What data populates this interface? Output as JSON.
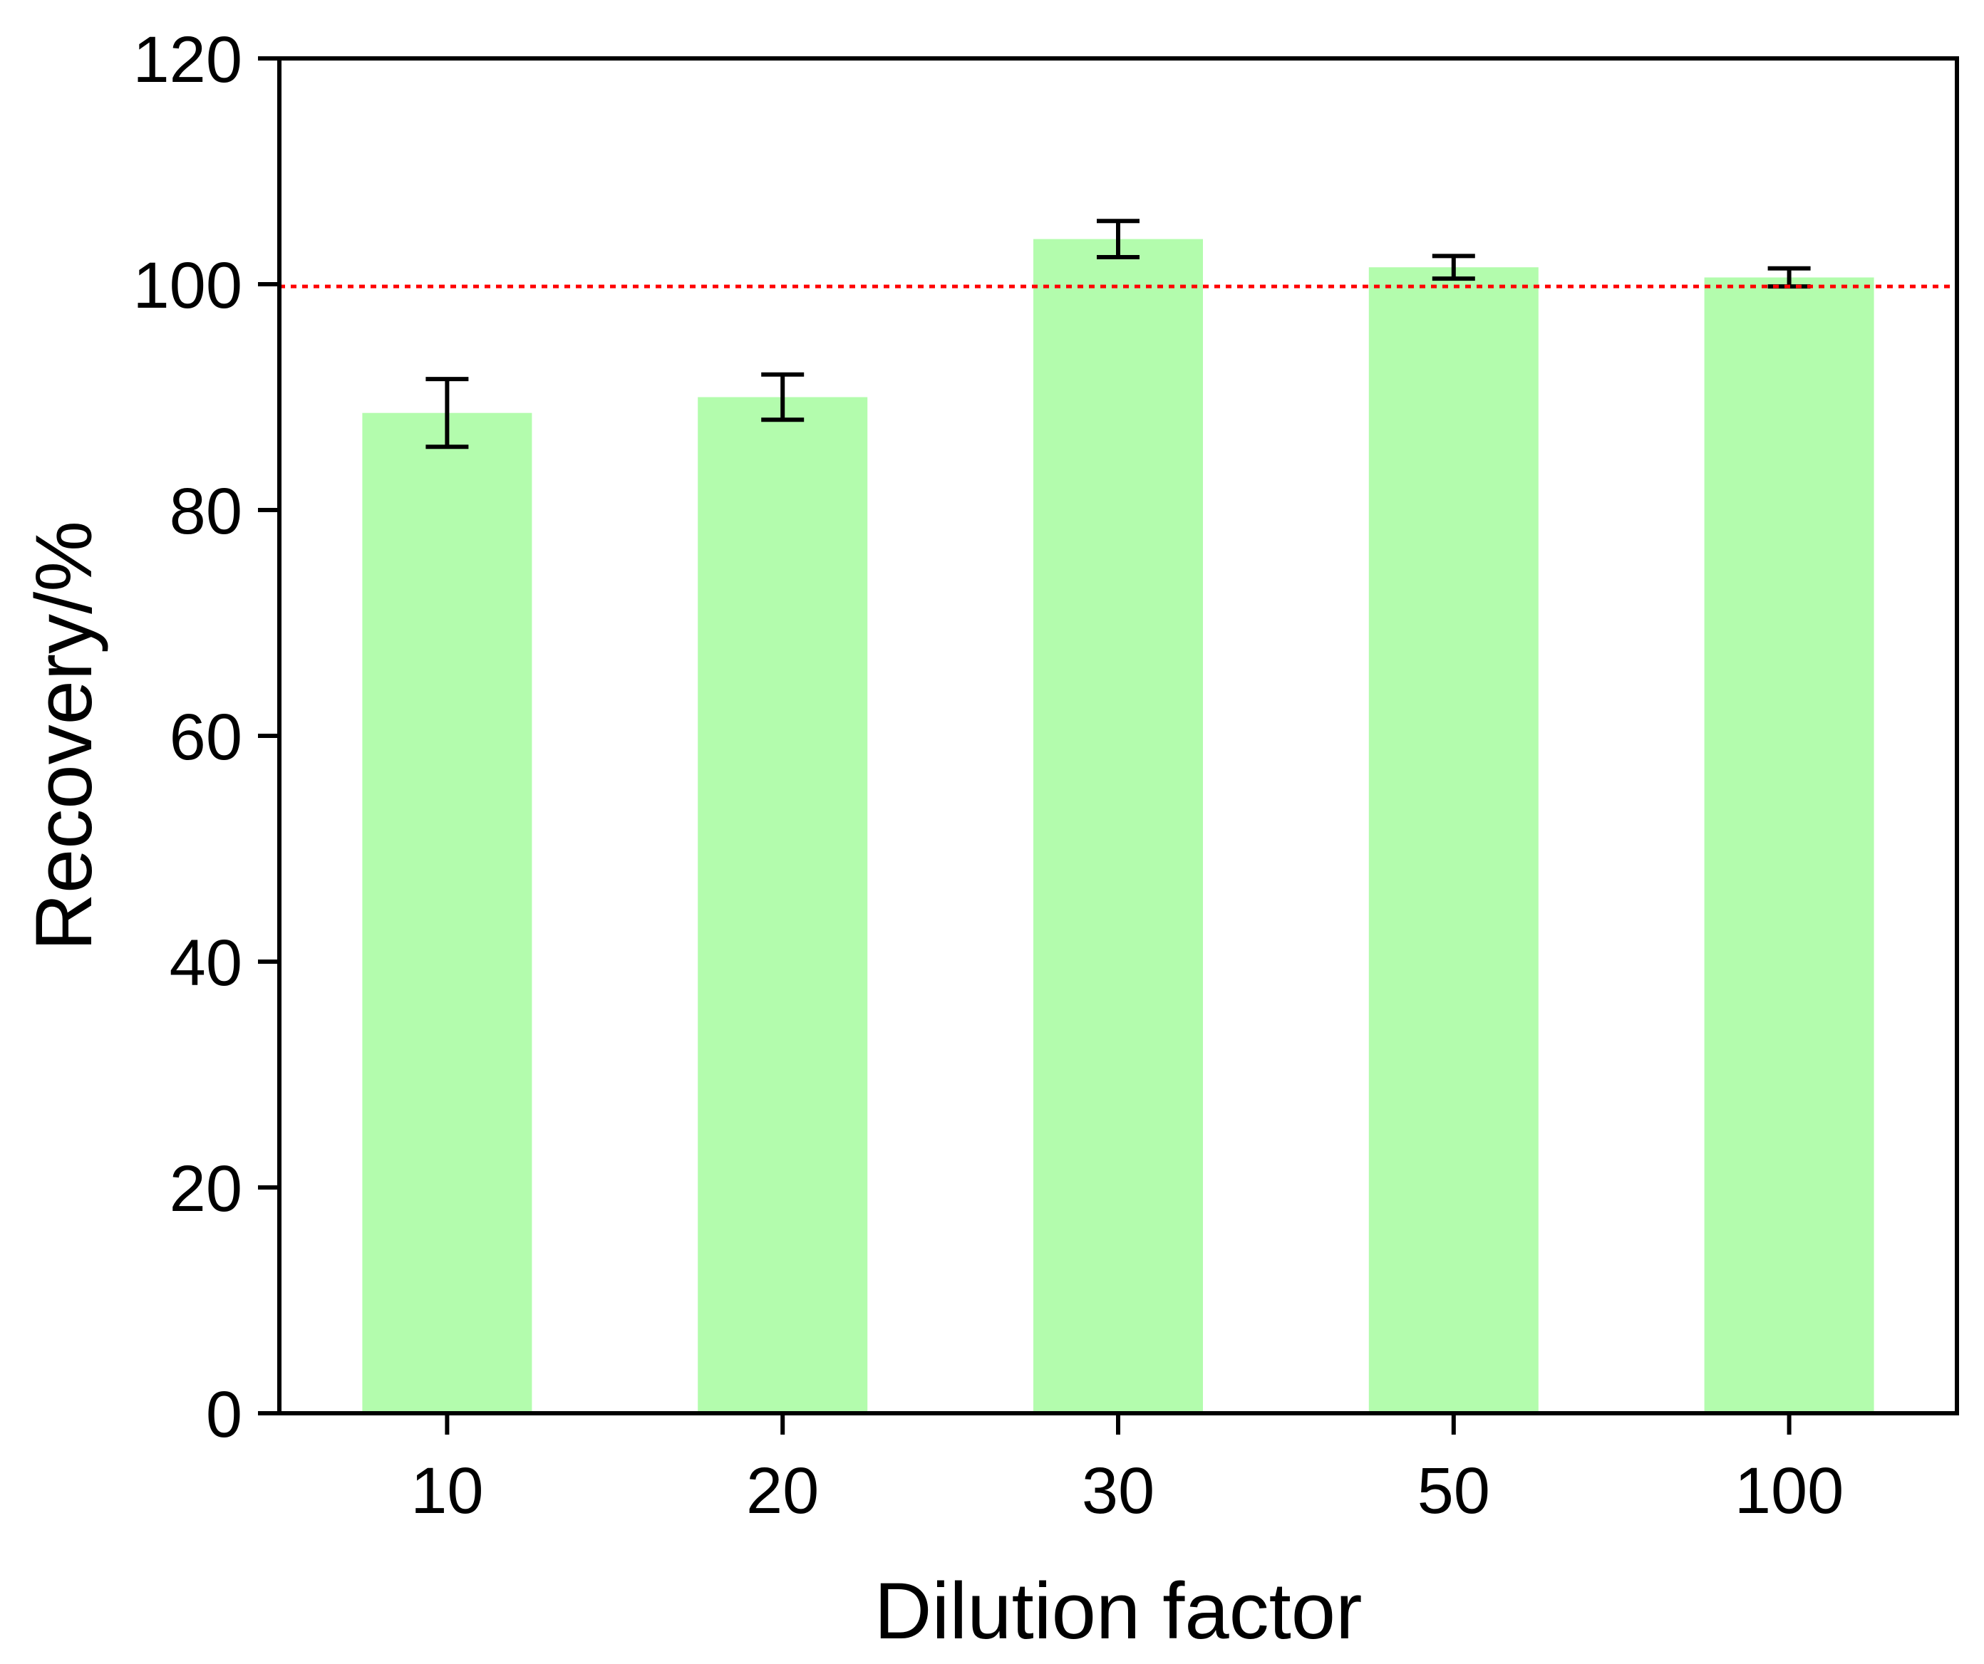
{
  "chart_data": {
    "type": "bar",
    "title": "",
    "xlabel": "Dilution factor",
    "ylabel": "Recovery/%",
    "categories": [
      "10",
      "20",
      "30",
      "50",
      "100"
    ],
    "values": [
      88.6,
      90.0,
      104.0,
      101.5,
      100.6
    ],
    "errors": [
      3.0,
      2.0,
      1.6,
      1.0,
      0.8
    ],
    "ylim": [
      0,
      120
    ],
    "yticks": [
      0,
      20,
      40,
      60,
      80,
      100,
      120
    ],
    "reference_line": {
      "y": 99.8,
      "style": "dotted",
      "color": "#ff0000"
    },
    "bar_color": "#b3fcad",
    "error_bar_color": "#000000",
    "grid": false,
    "legend": "none"
  }
}
